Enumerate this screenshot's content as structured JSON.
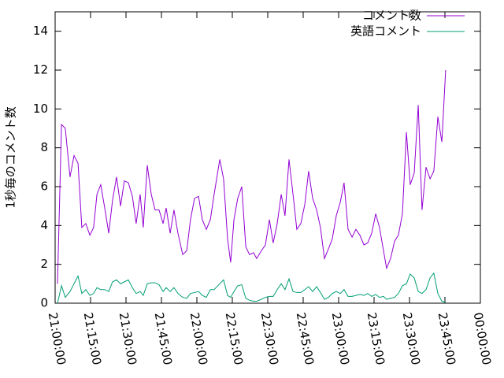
{
  "chart_data": {
    "type": "line",
    "ylabel": "1秒毎のコメント数",
    "x": [
      1,
      2.7,
      4.3,
      6.3,
      8,
      9.7,
      11.3,
      13,
      14.7,
      16.3,
      17.7,
      19.3,
      21,
      22.7,
      24.3,
      26,
      27.7,
      29.3,
      31,
      32.7,
      34.3,
      36,
      37.3,
      39,
      40.7,
      42.3,
      44,
      45.7,
      47,
      48.7,
      50.3,
      52,
      54,
      55.7,
      57.3,
      59,
      60.7,
      62.3,
      64,
      65.7,
      67.3,
      69.7,
      71.3,
      73,
      74.3,
      75.7,
      77.3,
      79,
      80.7,
      82.3,
      84,
      85.3,
      87.3,
      89,
      90.7,
      92.3,
      94,
      95.7,
      97.3,
      99,
      100.7,
      102.3,
      104,
      105.7,
      107.3,
      109,
      110.7,
      112.3,
      114,
      115.7,
      117.3,
      119,
      120.7,
      122.3,
      124,
      125.7,
      127.3,
      129,
      130.7,
      132.3,
      134,
      135.7,
      137.3,
      139,
      140.3,
      142,
      143.7,
      145.3,
      147,
      148.7,
      150.3,
      152,
      153.7,
      155.3,
      157,
      158.7,
      160.3,
      162,
      163.7,
      165.3
    ],
    "series": [
      {
        "name": "コメント数",
        "color": "#9400d3",
        "values": [
          1.0,
          9.2,
          9.0,
          6.5,
          7.6,
          7.2,
          3.9,
          4.1,
          3.5,
          3.9,
          5.6,
          6.1,
          4.9,
          3.6,
          5.3,
          6.5,
          5.0,
          6.3,
          6.2,
          5.5,
          4.1,
          5.6,
          3.9,
          7.1,
          5.6,
          4.8,
          4.8,
          4.1,
          4.9,
          3.6,
          4.8,
          3.6,
          2.5,
          2.7,
          4.3,
          5.4,
          5.5,
          4.3,
          3.8,
          4.3,
          5.6,
          7.4,
          6.4,
          3.3,
          2.1,
          4.3,
          5.4,
          6.0,
          2.9,
          2.5,
          2.6,
          2.3,
          2.7,
          3.0,
          4.3,
          3.1,
          4.1,
          5.6,
          4.5,
          7.4,
          5.6,
          3.8,
          4.1,
          5.1,
          6.8,
          5.4,
          4.8,
          3.9,
          2.3,
          2.8,
          3.3,
          4.5,
          5.2,
          6.2,
          3.8,
          3.4,
          3.8,
          3.5,
          3.0,
          3.1,
          3.6,
          4.6,
          3.9,
          2.7,
          1.8,
          2.3,
          3.2,
          3.5,
          4.6,
          8.8,
          6.1,
          6.7,
          10.2,
          4.8,
          7.0,
          6.4,
          6.8,
          9.6,
          8.3,
          12.0
        ]
      },
      {
        "name": "英語コメント",
        "color": "#009e73",
        "values": [
          0,
          0.9,
          0.3,
          0.6,
          1.0,
          1.4,
          0.5,
          0.7,
          0.4,
          0.5,
          0.8,
          0.7,
          0.7,
          0.6,
          1.1,
          1.2,
          1.0,
          1.1,
          1.2,
          0.8,
          0.5,
          0.6,
          0.4,
          1.0,
          1.05,
          1.05,
          0.95,
          0.6,
          0.8,
          0.6,
          0.8,
          0.5,
          0.3,
          0.25,
          0.5,
          0.55,
          0.6,
          0.4,
          0.3,
          0.7,
          0.7,
          1.0,
          1.2,
          0.4,
          0.3,
          0.6,
          0.9,
          0.95,
          0.25,
          0.15,
          0.1,
          0.1,
          0.2,
          0.3,
          0.35,
          0.35,
          0.7,
          1.0,
          0.7,
          1.25,
          0.6,
          0.55,
          0.55,
          0.7,
          0.85,
          0.6,
          0.85,
          0.55,
          0.2,
          0.3,
          0.5,
          0.6,
          0.5,
          0.7,
          0.35,
          0.35,
          0.4,
          0.45,
          0.4,
          0.5,
          0.35,
          0.45,
          0.3,
          0.35,
          0.2,
          0.25,
          0.3,
          0.5,
          0.9,
          1.0,
          1.5,
          1.3,
          0.6,
          0.5,
          0.7,
          1.3,
          1.55,
          0.5,
          0.1,
          0.05
        ]
      }
    ],
    "xlim": [
      0,
      180
    ],
    "xticks": [
      {
        "value": 0,
        "label": "21:00:00"
      },
      {
        "value": 15,
        "label": "21:15:00"
      },
      {
        "value": 30,
        "label": "21:30:00"
      },
      {
        "value": 45,
        "label": "21:45:00"
      },
      {
        "value": 60,
        "label": "22:00:00"
      },
      {
        "value": 75,
        "label": "22:15:00"
      },
      {
        "value": 90,
        "label": "22:30:00"
      },
      {
        "value": 105,
        "label": "22:45:00"
      },
      {
        "value": 120,
        "label": "23:00:00"
      },
      {
        "value": 135,
        "label": "23:15:00"
      },
      {
        "value": 150,
        "label": "23:30:00"
      },
      {
        "value": 165,
        "label": "23:45:00"
      },
      {
        "value": 180,
        "label": "00:00:00"
      }
    ],
    "ylim": [
      0,
      15
    ],
    "yticks": [
      0,
      2,
      4,
      6,
      8,
      10,
      12,
      14
    ],
    "legend": "top-right"
  }
}
